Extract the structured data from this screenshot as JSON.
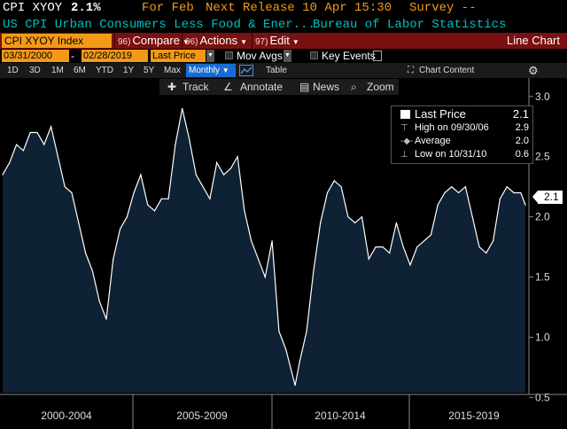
{
  "header": {
    "ticker": "CPI XYOY",
    "value": "2.1%",
    "for_label": "For Feb",
    "next_release": "Next Release 10 Apr 15:30",
    "survey": "Survey --",
    "description": "US CPI Urban Consumers Less Food & Ener...",
    "source": "Bureau of Labor Statistics"
  },
  "toolbar": {
    "security": "CPI XYOY Index",
    "compare_num": "96)",
    "compare": "Compare",
    "actions_num": "96)",
    "actions": "Actions",
    "edit_num": "97)",
    "edit": "Edit",
    "chart_type": "Line Chart"
  },
  "range": {
    "start": "03/31/2000",
    "sep": "-",
    "end": "02/28/2019",
    "field": "Last Price",
    "mov_avgs": "Mov Avgs",
    "key_events": "Key Events"
  },
  "periods": [
    "1D",
    "3D",
    "1M",
    "6M",
    "YTD",
    "1Y",
    "5Y",
    "Max"
  ],
  "frequency": "Monthly",
  "table_label": "Table",
  "chart_content": "Chart Content",
  "tools": {
    "track": "Track",
    "annotate": "Annotate",
    "news": "News",
    "zoom": "Zoom"
  },
  "legend": {
    "last_label": "Last Price",
    "last_value": "2.1",
    "high_label": "High on 09/30/06",
    "high_value": "2.9",
    "avg_label": "Average",
    "avg_value": "2.0",
    "low_label": "Low on 10/31/10",
    "low_value": "0.6"
  },
  "last_tag": "2.1",
  "colors": {
    "fill": "#0f2134",
    "line": "#ffffff",
    "toolbar": "#7a1010",
    "field": "#f29a17",
    "selected": "#1a6bd0"
  },
  "chart_data": {
    "type": "area",
    "x_axis_labels": [
      "2000-2004",
      "2005-2009",
      "2010-2014",
      "2015-2019"
    ],
    "y_ticks": [
      0.5,
      1.0,
      1.5,
      2.0,
      2.5,
      3.0
    ],
    "ylim": [
      0.4,
      3.05
    ],
    "grid": false,
    "x": [
      "2000-03",
      "2000-06",
      "2000-09",
      "2000-12",
      "2001-03",
      "2001-06",
      "2001-09",
      "2001-12",
      "2002-03",
      "2002-06",
      "2002-09",
      "2002-12",
      "2003-03",
      "2003-06",
      "2003-09",
      "2003-12",
      "2004-03",
      "2004-06",
      "2004-09",
      "2004-12",
      "2005-03",
      "2005-06",
      "2005-09",
      "2005-12",
      "2006-03",
      "2006-06",
      "2006-09",
      "2006-12",
      "2007-03",
      "2007-06",
      "2007-09",
      "2007-12",
      "2008-03",
      "2008-06",
      "2008-09",
      "2008-12",
      "2009-03",
      "2009-06",
      "2009-09",
      "2009-12",
      "2010-03",
      "2010-06",
      "2010-10",
      "2010-12",
      "2011-03",
      "2011-06",
      "2011-09",
      "2011-12",
      "2012-03",
      "2012-06",
      "2012-09",
      "2012-12",
      "2013-03",
      "2013-06",
      "2013-09",
      "2013-12",
      "2014-03",
      "2014-06",
      "2014-09",
      "2014-12",
      "2015-03",
      "2015-06",
      "2015-09",
      "2015-12",
      "2016-03",
      "2016-06",
      "2016-09",
      "2016-12",
      "2017-03",
      "2017-06",
      "2017-09",
      "2017-12",
      "2018-03",
      "2018-06",
      "2018-09",
      "2018-12",
      "2019-02"
    ],
    "values": [
      2.35,
      2.45,
      2.6,
      2.55,
      2.7,
      2.7,
      2.6,
      2.75,
      2.5,
      2.25,
      2.2,
      1.95,
      1.7,
      1.55,
      1.3,
      1.15,
      1.65,
      1.9,
      2.0,
      2.2,
      2.35,
      2.1,
      2.05,
      2.15,
      2.15,
      2.6,
      2.9,
      2.65,
      2.35,
      2.25,
      2.15,
      2.45,
      2.35,
      2.4,
      2.5,
      2.05,
      1.8,
      1.65,
      1.5,
      1.8,
      1.05,
      0.9,
      0.6,
      0.8,
      1.05,
      1.55,
      1.95,
      2.2,
      2.3,
      2.25,
      2.0,
      1.95,
      2.0,
      1.65,
      1.75,
      1.75,
      1.7,
      1.95,
      1.75,
      1.6,
      1.75,
      1.8,
      1.85,
      2.1,
      2.2,
      2.25,
      2.2,
      2.25,
      2.0,
      1.75,
      1.7,
      1.8,
      2.15,
      2.25,
      2.2,
      2.2,
      2.1
    ]
  }
}
